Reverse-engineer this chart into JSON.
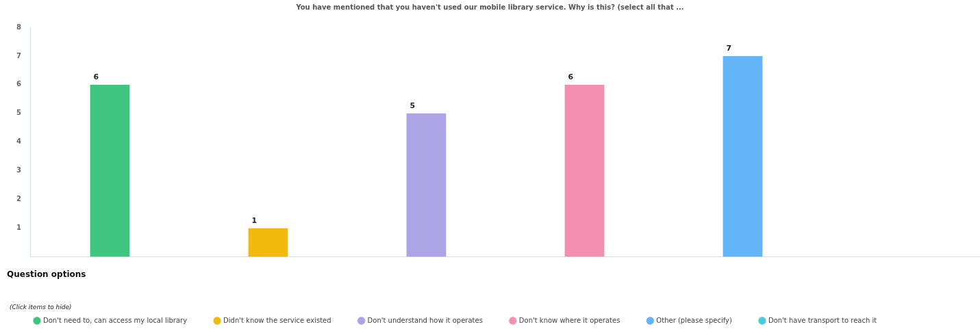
{
  "chart_data": {
    "type": "bar",
    "title": "You have mentioned that you haven't used our mobile library service. Why is this? (select all that ...",
    "categories": [
      null,
      null,
      null,
      null,
      null,
      null
    ],
    "series": [
      {
        "name": "Don't need to, can access my local library",
        "color": "#40c580",
        "values": [
          6,
          null,
          null,
          null,
          null,
          null
        ],
        "value_labels": [
          "6",
          null,
          null,
          null,
          null,
          null
        ]
      },
      {
        "name": "Didn't know the service existed",
        "color": "#f2b90f",
        "values": [
          null,
          1,
          null,
          null,
          null,
          null
        ],
        "value_labels": [
          null,
          "1",
          null,
          null,
          null,
          null
        ]
      },
      {
        "name": "Don't understand how it operates",
        "color": "#ada4e6",
        "values": [
          null,
          null,
          5,
          null,
          null,
          null
        ],
        "value_labels": [
          null,
          null,
          "5",
          null,
          null,
          null
        ]
      },
      {
        "name": "Don't know where it operates",
        "color": "#f390b1",
        "values": [
          null,
          null,
          null,
          6,
          null,
          null
        ],
        "value_labels": [
          null,
          null,
          null,
          "6",
          null,
          null
        ]
      },
      {
        "name": "Other (please specify)",
        "color": "#63b5f7",
        "values": [
          null,
          null,
          null,
          null,
          7,
          null
        ],
        "value_labels": [
          null,
          null,
          null,
          null,
          "7",
          null
        ]
      },
      {
        "name": "Don't have transport to reach it",
        "color": "#4ccbde",
        "values": [
          null,
          null,
          null,
          null,
          null,
          0
        ]
      }
    ],
    "ylim": [
      0,
      8
    ],
    "yticks": [
      1,
      2,
      3,
      4,
      5,
      6,
      7,
      8
    ],
    "tick_labels": "y",
    "grid": false,
    "legend": "bottom",
    "legend_title": "Question options",
    "annotations": [
      "(Click items to hide)"
    ]
  }
}
